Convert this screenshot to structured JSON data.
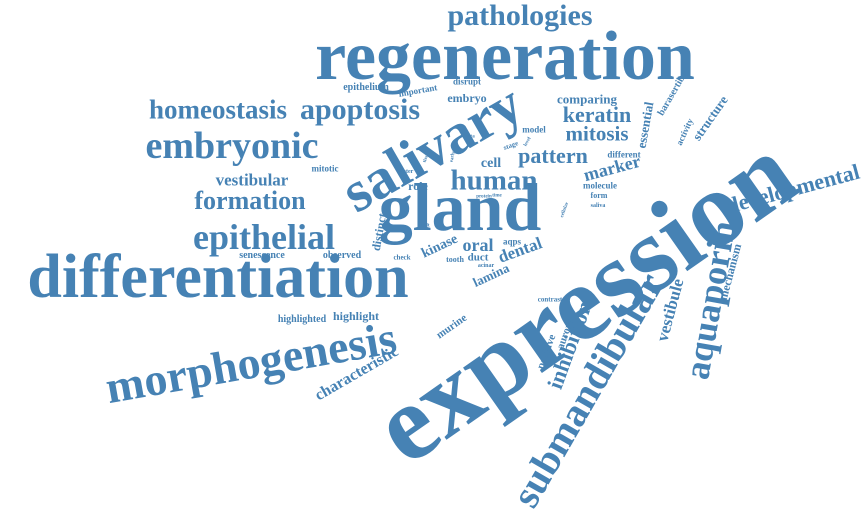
{
  "colors": {
    "word": "#4682b4",
    "background": "#ffffff"
  },
  "words": [
    {
      "text": "expression"
    },
    {
      "text": "regeneration"
    },
    {
      "text": "differentiation"
    },
    {
      "text": "salivary"
    },
    {
      "text": "gland"
    },
    {
      "text": "morphogenesis"
    },
    {
      "text": "submandibular"
    },
    {
      "text": "embryonic"
    },
    {
      "text": "epithelial"
    },
    {
      "text": "aquaporin"
    },
    {
      "text": "pathologies"
    },
    {
      "text": "apoptosis"
    },
    {
      "text": "homeostasis"
    },
    {
      "text": "human"
    },
    {
      "text": "formation"
    },
    {
      "text": "developmental"
    },
    {
      "text": "keratin"
    },
    {
      "text": "mitosis"
    },
    {
      "text": "pattern"
    },
    {
      "text": "inhibition"
    },
    {
      "text": "vestibule"
    },
    {
      "text": "vestibular"
    },
    {
      "text": "characteristic"
    },
    {
      "text": "dental"
    },
    {
      "text": "oral"
    },
    {
      "text": "marker"
    },
    {
      "text": "cell"
    },
    {
      "text": "comparing"
    },
    {
      "text": "essential"
    },
    {
      "text": "structure"
    },
    {
      "text": "mechanism"
    },
    {
      "text": "kinase"
    },
    {
      "text": "lamina"
    },
    {
      "text": "distinct"
    },
    {
      "text": "role"
    },
    {
      "text": "embryo"
    },
    {
      "text": "highlight"
    },
    {
      "text": "highlighted"
    },
    {
      "text": "senescence"
    },
    {
      "text": "observed"
    },
    {
      "text": "epithelium"
    },
    {
      "text": "important"
    },
    {
      "text": "disrupt"
    },
    {
      "text": "mitotic"
    },
    {
      "text": "model"
    },
    {
      "text": "positive"
    },
    {
      "text": "aurora"
    },
    {
      "text": "murine"
    },
    {
      "text": "barasertib"
    },
    {
      "text": "activity"
    },
    {
      "text": "different"
    },
    {
      "text": "molecule"
    },
    {
      "text": "form"
    },
    {
      "text": "saliva"
    },
    {
      "text": "duct"
    },
    {
      "text": "tooth"
    },
    {
      "text": "check"
    },
    {
      "text": "aqps"
    },
    {
      "text": "acinar"
    },
    {
      "text": "contrast"
    },
    {
      "text": "stage"
    },
    {
      "text": "water"
    },
    {
      "text": "data"
    },
    {
      "text": "adult"
    },
    {
      "text": "early"
    },
    {
      "text": "level"
    },
    {
      "text": "cellular"
    },
    {
      "text": "protein"
    },
    {
      "text": "time"
    },
    {
      "text": "tissue"
    }
  ]
}
